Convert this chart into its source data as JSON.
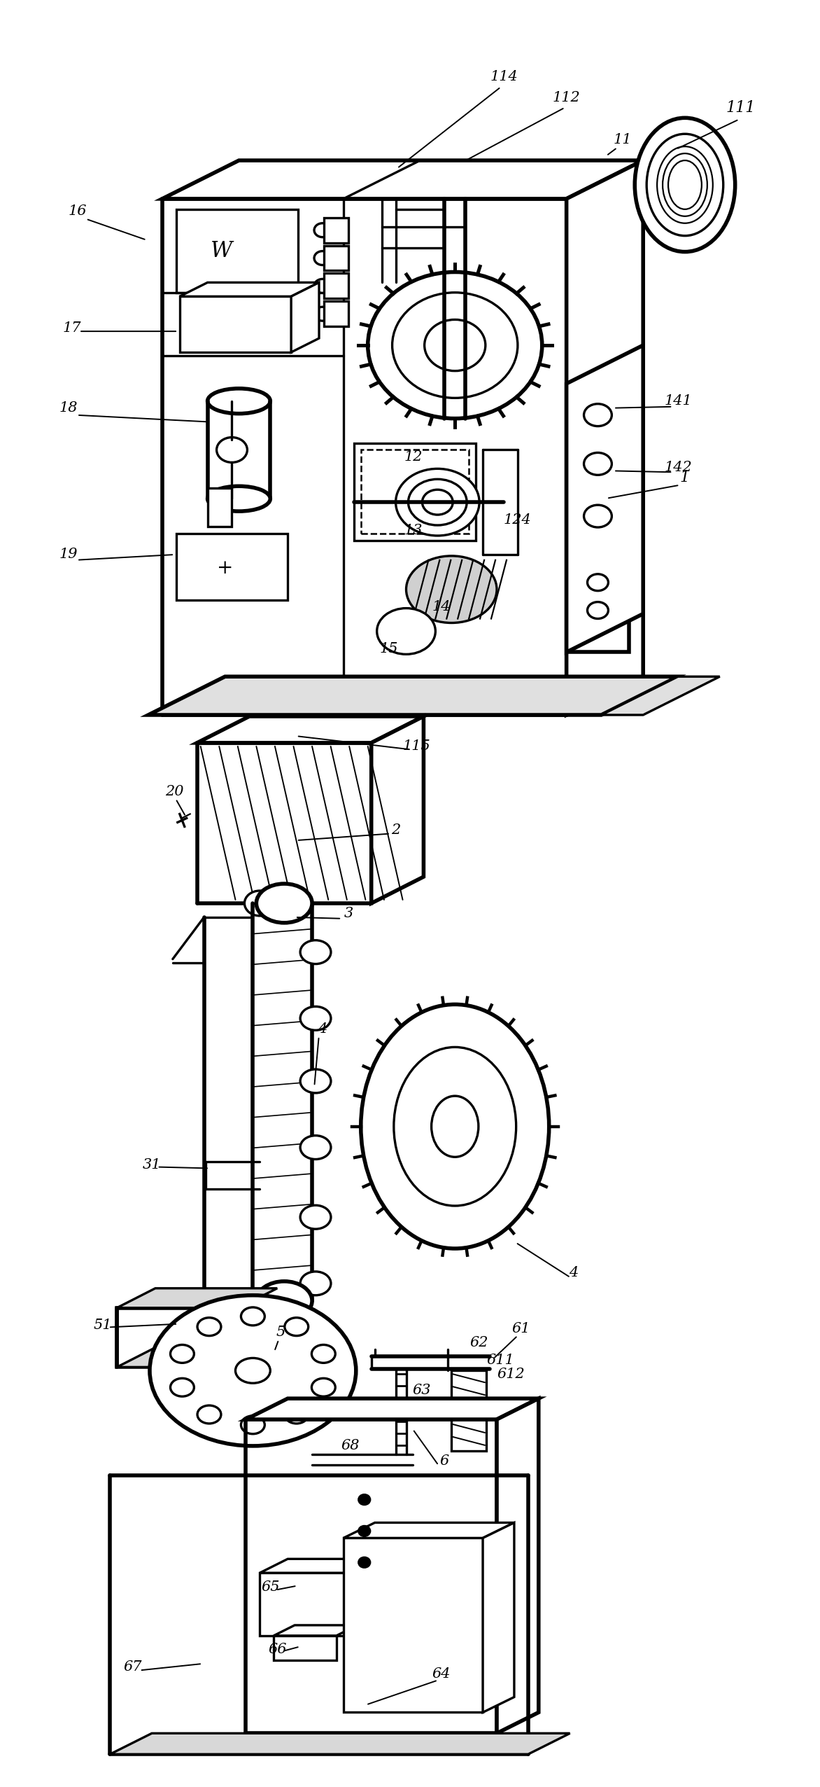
{
  "fig_width": 5.86,
  "fig_height": 12.76,
  "dpi": 200,
  "lw": 1.2,
  "tlw": 2.0,
  "lc": "black"
}
